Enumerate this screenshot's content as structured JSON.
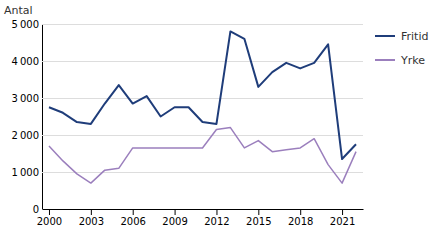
{
  "chart_data": {
    "type": "line",
    "ylabel": "Antal",
    "x": [
      2000,
      2001,
      2002,
      2003,
      2004,
      2005,
      2006,
      2007,
      2008,
      2009,
      2010,
      2011,
      2012,
      2013,
      2014,
      2015,
      2016,
      2017,
      2018,
      2019,
      2020,
      2021,
      2022
    ],
    "series": [
      {
        "name": "Fritid",
        "color": "#1F3D7A",
        "values": [
          2750,
          2600,
          2350,
          2300,
          2850,
          3350,
          2850,
          3050,
          2500,
          2750,
          2750,
          2350,
          2300,
          4800,
          4600,
          3300,
          3700,
          3950,
          3800,
          3950,
          4450,
          1350,
          1750
        ]
      },
      {
        "name": "Yrke",
        "color": "#9B7FBD",
        "values": [
          1700,
          1300,
          950,
          700,
          1050,
          1100,
          1650,
          1650,
          1650,
          1650,
          1650,
          1650,
          2150,
          2200,
          1650,
          1850,
          1550,
          1600,
          1650,
          1900,
          1200,
          700,
          1550
        ]
      }
    ],
    "xlim": [
      1999.5,
      2022.5
    ],
    "xticks": [
      2000,
      2003,
      2006,
      2009,
      2012,
      2015,
      2018,
      2021
    ],
    "ylim": [
      0,
      5000
    ],
    "yticks": [
      0,
      {
        "value": 1000,
        "label": "1 000"
      },
      {
        "value": 2000,
        "label": "2 000"
      },
      {
        "value": 3000,
        "label": "3 000"
      },
      {
        "value": 4000,
        "label": "4 000"
      },
      {
        "value": 5000,
        "label": "5 000"
      }
    ],
    "grid": true,
    "legend": "right"
  }
}
